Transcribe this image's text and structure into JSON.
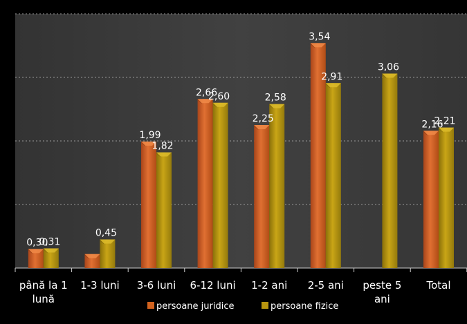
{
  "chart_data": {
    "type": "bar",
    "categories": [
      "până la 1 lună",
      "1-3 luni",
      "3-6 luni",
      "6-12 luni",
      "1-2 ani",
      "2-5 ani",
      "peste 5 ani",
      "Total"
    ],
    "category_lines": [
      [
        "până la 1",
        "lună"
      ],
      [
        "1-3 luni"
      ],
      [
        "3-6 luni"
      ],
      [
        "6-12 luni"
      ],
      [
        "1-2 ani"
      ],
      [
        "2-5 ani"
      ],
      [
        "peste 5",
        "ani"
      ],
      [
        "Total"
      ]
    ],
    "series": [
      {
        "name": "persoane juridice",
        "color": "#d2621e",
        "values": [
          0.3,
          0.22,
          1.99,
          2.66,
          2.25,
          3.54,
          null,
          2.16
        ],
        "labels": [
          "0,30",
          "",
          "1,99",
          "2,66",
          "2,25",
          "3,54",
          "",
          "2,16"
        ]
      },
      {
        "name": "persoane fizice",
        "color": "#b8950f",
        "values": [
          0.31,
          0.45,
          1.82,
          2.6,
          2.58,
          2.91,
          3.06,
          2.21
        ],
        "labels": [
          "0,31",
          "0,45",
          "1,82",
          "2,60",
          "2,58",
          "2,91",
          "3,06",
          "2,21"
        ]
      }
    ],
    "ylim": [
      0,
      4
    ],
    "grid": true,
    "legend_position": "bottom",
    "plot_background": "#3b3b3b",
    "text_color": "#ffffff"
  }
}
